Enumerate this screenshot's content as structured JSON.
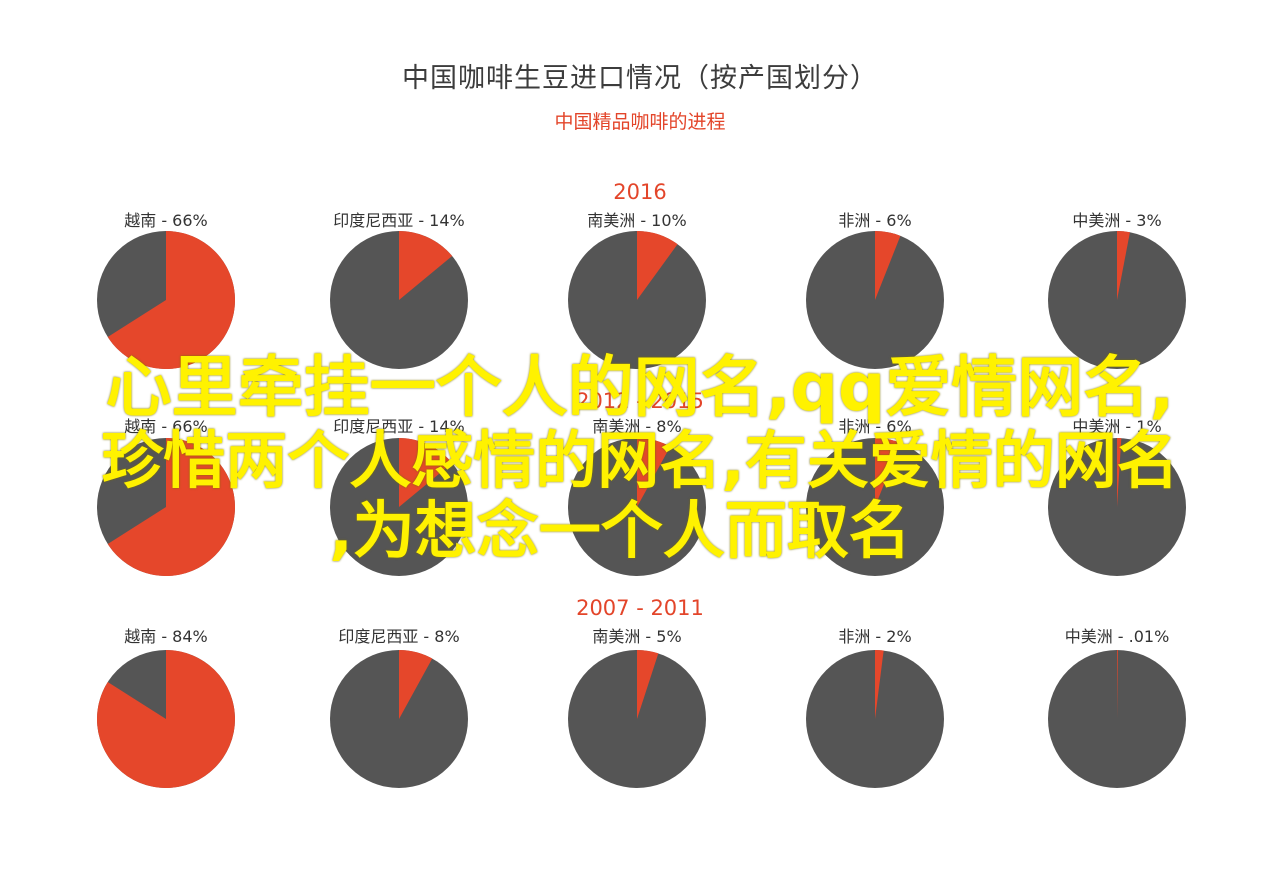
{
  "header": {
    "title": "中国咖啡生豆进口情况（按产国划分）",
    "subtitle": "中国精品咖啡的进程"
  },
  "overlay": {
    "line1": "心里牵挂一个人的网名,qq爱情网名,",
    "line2": "珍惜两个人感情的网名,有关爱情的网名",
    "line3": ",为想念一个人而取名"
  },
  "colors": {
    "accent": "#e5472b",
    "pie_base": "#555555",
    "overlay_text": "#fff200"
  },
  "chart_data": [
    {
      "type": "pie",
      "title": "2016",
      "slices": [
        {
          "label": "越南 - 66%",
          "value": 66
        },
        {
          "label": "印度尼西亚 - 14%",
          "value": 14
        },
        {
          "label": "南美洲  - 10%",
          "value": 10
        },
        {
          "label": "非洲 - 6%",
          "value": 6
        },
        {
          "label": "中美洲  - 3%",
          "value": 3
        }
      ]
    },
    {
      "type": "pie",
      "title": "2012 - 2015",
      "slices": [
        {
          "label": "越南 - 66%",
          "value": 66
        },
        {
          "label": "印度尼西亚 - 14%",
          "value": 14
        },
        {
          "label": "南美洲 - 8%",
          "value": 8
        },
        {
          "label": "非洲 - 6%",
          "value": 6
        },
        {
          "label": "中美洲 - 1%",
          "value": 1
        }
      ]
    },
    {
      "type": "pie",
      "title": "2007 - 2011",
      "slices": [
        {
          "label": "越南 - 84%",
          "value": 84
        },
        {
          "label": "印度尼西亚 - 8%",
          "value": 8
        },
        {
          "label": "南美洲  - 5%",
          "value": 5
        },
        {
          "label": "非洲  - 2%",
          "value": 2
        },
        {
          "label": "中美洲  - .01%",
          "value": 0.01
        }
      ]
    }
  ]
}
